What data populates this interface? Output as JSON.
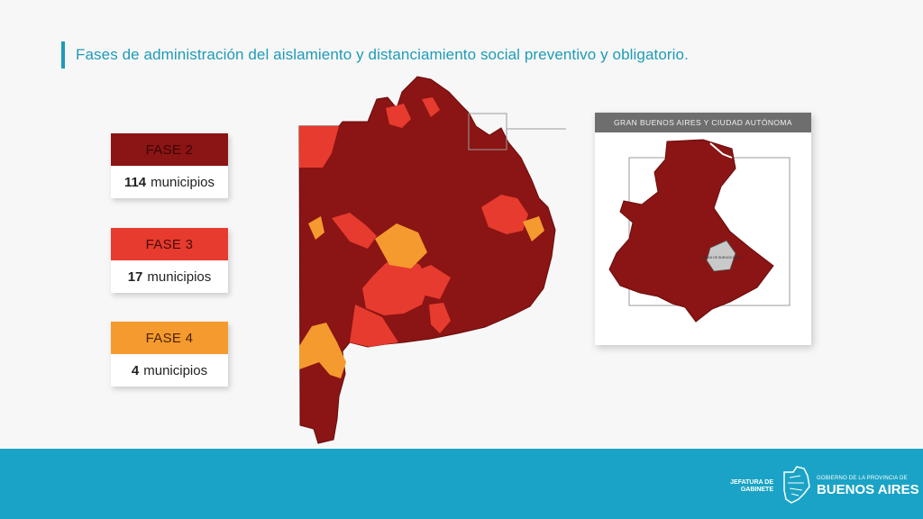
{
  "title": "Fases de administración del aislamiento y distanciamiento social preventivo y obligatorio.",
  "legend": [
    {
      "phase": "FASE 2",
      "count": "114",
      "unit": "municipios",
      "color": "#8b1414"
    },
    {
      "phase": "FASE 3",
      "count": "17",
      "unit": "municipios",
      "color": "#e63b2e"
    },
    {
      "phase": "FASE 4",
      "count": "4",
      "unit": "municipios",
      "color": "#f59a2e"
    }
  ],
  "inset": {
    "title": "GRAN BUENOS AIRES Y CIUDAD AUTÓNOMA",
    "caba_label": "CIUDAD DE BUENOS AIRES"
  },
  "footer": {
    "jefatura": "JEFATURA DE GABINETE",
    "gobierno": "GOBIERNO DE LA PROVINCIA DE",
    "province": "BUENOS AIRES"
  },
  "colors": {
    "fase2": "#8b1414",
    "fase3": "#e63b2e",
    "fase4": "#f59a2e",
    "accent": "#1f9bb8",
    "footer": "#1aa3c6"
  }
}
